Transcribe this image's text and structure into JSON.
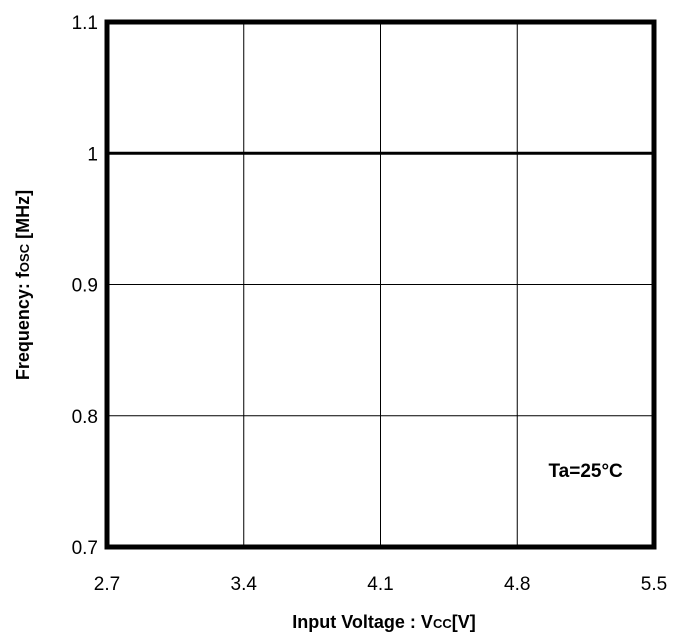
{
  "chart_data": {
    "type": "line",
    "title": "",
    "xlabel": {
      "main": "Input Voltage : V",
      "sub": "CC",
      "unit": "[V]"
    },
    "ylabel": {
      "main": "Frequency: f",
      "sub": "OSC",
      "unit": " [MHz]"
    },
    "xlim": [
      2.7,
      5.5
    ],
    "ylim": [
      0.7,
      1.1
    ],
    "x_ticks": [
      2.7,
      3.4,
      4.1,
      4.8,
      5.5
    ],
    "x_tick_labels": [
      "2.7",
      "3.4",
      "4.1",
      "4.8",
      "5.5"
    ],
    "y_ticks": [
      0.7,
      0.8,
      0.9,
      1.0,
      1.1
    ],
    "y_tick_labels": [
      "0.7",
      "0.8",
      "0.9",
      "1",
      "1.1"
    ],
    "grid": true,
    "series": [
      {
        "x": [
          2.7,
          5.5
        ],
        "y": [
          1.0,
          1.0
        ],
        "color": "#000000"
      }
    ],
    "annotations": [
      {
        "text": "Ta=25°C",
        "x": 5.15,
        "y": 0.751
      }
    ]
  }
}
